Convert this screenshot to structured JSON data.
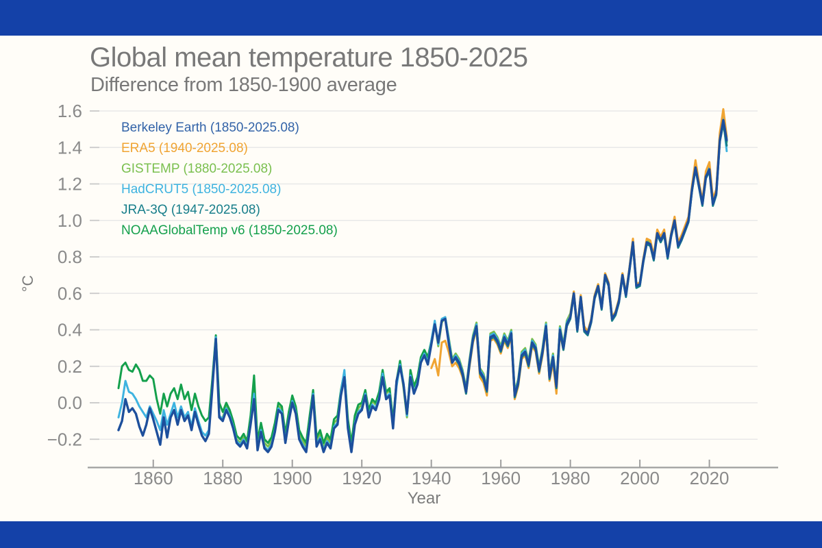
{
  "page": {
    "background": "#fffdf8",
    "banner_color": "#1441a8",
    "title_color": "#787878",
    "axis_text_color": "#8a8a8a",
    "gridline_color": "#e8e8e8",
    "axis_line_color": "#9e9e9e"
  },
  "chart_data": {
    "type": "line",
    "title": "Global mean temperature 1850-2025",
    "subtitle": "Difference from 1850-1900 average",
    "xlabel": "Year",
    "ylabel": "°C",
    "grid": true,
    "legend_position": "top-left",
    "x_range": [
      1850,
      2025.5
    ],
    "ylim": [
      -0.35,
      1.65
    ],
    "x_ticks": [
      1860,
      1880,
      1900,
      1920,
      1940,
      1960,
      1980,
      2000,
      2020
    ],
    "y_ticks": [
      1.6,
      1.4,
      1.2,
      1.0,
      0.8,
      0.6,
      0.4,
      0.2,
      0.0,
      -0.2
    ],
    "draw_order": [
      "gistemp",
      "noaa",
      "hadcrut5",
      "era5",
      "jra3q",
      "berkeley"
    ],
    "series": [
      {
        "id": "berkeley",
        "label": "Berkeley Earth (1850-2025.08)",
        "color": "#1d4f9c",
        "legend_color": "#3263a8",
        "line_width": 3.4,
        "start_year": 1850,
        "values": [
          -0.15,
          -0.1,
          0.02,
          -0.05,
          -0.03,
          -0.06,
          -0.13,
          -0.18,
          -0.12,
          -0.03,
          -0.09,
          -0.16,
          -0.23,
          -0.08,
          -0.19,
          -0.08,
          -0.04,
          -0.12,
          -0.04,
          -0.1,
          -0.07,
          -0.15,
          -0.05,
          -0.12,
          -0.18,
          -0.21,
          -0.17,
          0.08,
          0.35,
          -0.08,
          -0.1,
          -0.04,
          -0.08,
          -0.14,
          -0.22,
          -0.24,
          -0.21,
          -0.25,
          -0.12,
          0.02,
          -0.26,
          -0.16,
          -0.25,
          -0.27,
          -0.24,
          -0.16,
          -0.04,
          -0.06,
          -0.22,
          -0.1,
          0.0,
          -0.06,
          -0.2,
          -0.24,
          -0.27,
          -0.12,
          0.04,
          -0.24,
          -0.2,
          -0.27,
          -0.22,
          -0.25,
          -0.14,
          -0.12,
          0.04,
          0.14,
          -0.14,
          -0.27,
          -0.12,
          -0.06,
          -0.04,
          0.04,
          -0.08,
          -0.02,
          -0.04,
          0.02,
          0.14,
          0.02,
          0.04,
          -0.14,
          0.12,
          0.2,
          0.1,
          -0.06,
          0.14,
          0.05,
          0.1,
          0.22,
          0.26,
          0.21,
          0.32,
          0.43,
          0.33,
          0.45,
          0.46,
          0.33,
          0.22,
          0.25,
          0.22,
          0.16,
          0.06,
          0.22,
          0.35,
          0.42,
          0.17,
          0.14,
          0.07,
          0.36,
          0.37,
          0.34,
          0.29,
          0.36,
          0.32,
          0.38,
          0.04,
          0.11,
          0.26,
          0.28,
          0.21,
          0.33,
          0.3,
          0.18,
          0.28,
          0.42,
          0.14,
          0.25,
          0.09,
          0.4,
          0.3,
          0.43,
          0.47,
          0.6,
          0.4,
          0.58,
          0.4,
          0.38,
          0.45,
          0.58,
          0.64,
          0.52,
          0.7,
          0.65,
          0.46,
          0.49,
          0.56,
          0.7,
          0.59,
          0.73,
          0.88,
          0.64,
          0.65,
          0.78,
          0.88,
          0.87,
          0.79,
          0.93,
          0.89,
          0.93,
          0.8,
          0.92,
          1.0,
          0.86,
          0.9,
          0.95,
          1.0,
          1.17,
          1.29,
          1.19,
          1.09,
          1.24,
          1.28,
          1.09,
          1.15,
          1.44,
          1.55,
          1.44
        ]
      },
      {
        "id": "era5",
        "label": "ERA5 (1940-2025.08)",
        "color": "#f0a432",
        "legend_color": "#f0a432",
        "line_width": 3,
        "start_year": 1940,
        "values": [
          0.19,
          0.24,
          0.15,
          0.33,
          0.34,
          0.28,
          0.2,
          0.22,
          0.19,
          0.14,
          0.05,
          0.2,
          0.33,
          0.4,
          0.14,
          0.11,
          0.04,
          0.34,
          0.35,
          0.32,
          0.27,
          0.34,
          0.3,
          0.36,
          0.02,
          0.09,
          0.24,
          0.26,
          0.19,
          0.31,
          0.28,
          0.16,
          0.26,
          0.4,
          0.12,
          0.22,
          0.05,
          0.38,
          0.29,
          0.42,
          0.48,
          0.61,
          0.41,
          0.59,
          0.42,
          0.39,
          0.46,
          0.59,
          0.65,
          0.53,
          0.71,
          0.66,
          0.47,
          0.5,
          0.57,
          0.71,
          0.6,
          0.74,
          0.9,
          0.65,
          0.66,
          0.79,
          0.9,
          0.89,
          0.81,
          0.95,
          0.91,
          0.95,
          0.81,
          0.93,
          1.02,
          0.88,
          0.92,
          0.97,
          1.02,
          1.19,
          1.33,
          1.21,
          1.11,
          1.27,
          1.32,
          1.12,
          1.17,
          1.48,
          1.61,
          1.46
        ]
      },
      {
        "id": "gistemp",
        "label": "GISTEMP (1880-2025.08)",
        "color": "#7abf4e",
        "legend_color": "#7abf4e",
        "line_width": 3,
        "start_year": 1880,
        "values": [
          -0.08,
          -0.02,
          -0.06,
          -0.12,
          -0.2,
          -0.22,
          -0.19,
          -0.23,
          -0.09,
          0.12,
          -0.23,
          -0.13,
          -0.22,
          -0.24,
          -0.21,
          -0.13,
          -0.02,
          -0.03,
          -0.19,
          -0.07,
          0.03,
          -0.03,
          -0.17,
          -0.21,
          -0.24,
          -0.09,
          0.06,
          -0.21,
          -0.17,
          -0.24,
          -0.19,
          -0.22,
          -0.11,
          -0.09,
          0.06,
          0.16,
          -0.11,
          -0.24,
          -0.09,
          -0.03,
          -0.01,
          0.06,
          -0.05,
          0.01,
          -0.01,
          0.05,
          0.17,
          0.05,
          0.07,
          -0.11,
          0.11,
          0.22,
          0.08,
          -0.08,
          0.17,
          0.08,
          0.13,
          0.24,
          0.28,
          0.24,
          0.33,
          0.44,
          0.31,
          0.44,
          0.47,
          0.36,
          0.24,
          0.27,
          0.24,
          0.18,
          0.08,
          0.24,
          0.37,
          0.44,
          0.19,
          0.16,
          0.09,
          0.38,
          0.39,
          0.36,
          0.31,
          0.38,
          0.34,
          0.4,
          0.06,
          0.13,
          0.28,
          0.3,
          0.23,
          0.35,
          0.32,
          0.2,
          0.3,
          0.44,
          0.16,
          0.27,
          0.11,
          0.42,
          0.32,
          0.45,
          0.49,
          0.61,
          0.41,
          0.59,
          0.41,
          0.39,
          0.46,
          0.59,
          0.65,
          0.53,
          0.71,
          0.66,
          0.47,
          0.5,
          0.57,
          0.71,
          0.6,
          0.74,
          0.89,
          0.65,
          0.66,
          0.79,
          0.89,
          0.88,
          0.8,
          0.94,
          0.9,
          0.94,
          0.81,
          0.93,
          1.01,
          0.87,
          0.91,
          0.96,
          1.01,
          1.18,
          1.31,
          1.2,
          1.1,
          1.25,
          1.3,
          1.11,
          1.17,
          1.46,
          1.58,
          1.45
        ]
      },
      {
        "id": "hadcrut5",
        "label": "HadCRUT5 (1850-2025.08)",
        "color": "#3eb3e0",
        "legend_color": "#3eb3e0",
        "line_width": 3,
        "start_year": 1850,
        "values": [
          -0.08,
          0.0,
          0.12,
          0.06,
          0.05,
          0.02,
          -0.02,
          -0.05,
          -0.08,
          -0.02,
          -0.06,
          -0.1,
          -0.15,
          -0.04,
          -0.12,
          -0.06,
          0.0,
          -0.08,
          -0.02,
          -0.08,
          -0.05,
          -0.13,
          -0.03,
          -0.1,
          -0.16,
          -0.18,
          -0.15,
          0.09,
          0.36,
          -0.07,
          -0.09,
          -0.03,
          -0.07,
          -0.13,
          -0.21,
          -0.23,
          -0.2,
          -0.24,
          -0.11,
          0.05,
          -0.25,
          -0.15,
          -0.24,
          -0.26,
          -0.23,
          -0.15,
          -0.03,
          -0.05,
          -0.21,
          -0.09,
          0.01,
          -0.05,
          -0.19,
          -0.23,
          -0.26,
          -0.11,
          0.05,
          -0.23,
          -0.19,
          -0.26,
          -0.21,
          -0.24,
          -0.13,
          -0.11,
          0.06,
          0.18,
          -0.13,
          -0.26,
          -0.11,
          -0.05,
          -0.03,
          0.05,
          -0.07,
          -0.01,
          -0.03,
          0.03,
          0.16,
          0.03,
          0.05,
          -0.13,
          0.09,
          0.21,
          0.11,
          -0.07,
          0.15,
          0.06,
          0.11,
          0.23,
          0.27,
          0.22,
          0.34,
          0.45,
          0.32,
          0.46,
          0.47,
          0.35,
          0.23,
          0.26,
          0.23,
          0.17,
          0.07,
          0.23,
          0.36,
          0.43,
          0.18,
          0.15,
          0.08,
          0.37,
          0.38,
          0.35,
          0.3,
          0.37,
          0.33,
          0.39,
          0.05,
          0.12,
          0.27,
          0.29,
          0.22,
          0.34,
          0.31,
          0.19,
          0.29,
          0.43,
          0.15,
          0.26,
          0.1,
          0.41,
          0.31,
          0.44,
          0.48,
          0.6,
          0.4,
          0.58,
          0.41,
          0.38,
          0.45,
          0.58,
          0.64,
          0.52,
          0.7,
          0.65,
          0.46,
          0.49,
          0.56,
          0.7,
          0.59,
          0.73,
          0.89,
          0.64,
          0.65,
          0.78,
          0.88,
          0.87,
          0.79,
          0.93,
          0.89,
          0.93,
          0.8,
          0.92,
          1.0,
          0.86,
          0.9,
          0.95,
          1.0,
          1.16,
          1.3,
          1.19,
          1.09,
          1.24,
          1.29,
          1.1,
          1.16,
          1.45,
          1.56,
          1.38
        ]
      },
      {
        "id": "jra3q",
        "label": "JRA-3Q (1947-2025.08)",
        "color": "#177e8a",
        "legend_color": "#177e8a",
        "line_width": 3,
        "start_year": 1947,
        "values": [
          0.24,
          0.21,
          0.15,
          0.05,
          0.21,
          0.34,
          0.41,
          0.16,
          0.13,
          0.06,
          0.35,
          0.36,
          0.33,
          0.28,
          0.35,
          0.31,
          0.37,
          0.03,
          0.1,
          0.25,
          0.27,
          0.2,
          0.32,
          0.29,
          0.17,
          0.27,
          0.41,
          0.13,
          0.24,
          0.08,
          0.39,
          0.29,
          0.42,
          0.46,
          0.59,
          0.39,
          0.57,
          0.39,
          0.37,
          0.44,
          0.57,
          0.63,
          0.51,
          0.69,
          0.64,
          0.45,
          0.48,
          0.55,
          0.69,
          0.58,
          0.72,
          0.87,
          0.63,
          0.64,
          0.77,
          0.87,
          0.86,
          0.78,
          0.92,
          0.88,
          0.92,
          0.79,
          0.91,
          0.99,
          0.85,
          0.89,
          0.94,
          0.99,
          1.16,
          1.28,
          1.18,
          1.08,
          1.23,
          1.27,
          1.08,
          1.14,
          1.43,
          1.53,
          1.41
        ]
      },
      {
        "id": "noaa",
        "label": "NOAAGlobalTemp v6 (1850-2025.08)",
        "color": "#14a04c",
        "legend_color": "#14a04c",
        "line_width": 3,
        "start_year": 1850,
        "values": [
          0.08,
          0.2,
          0.22,
          0.18,
          0.17,
          0.21,
          0.18,
          0.12,
          0.12,
          0.15,
          0.13,
          0.02,
          -0.06,
          0.05,
          -0.02,
          0.05,
          0.08,
          0.02,
          0.1,
          0.02,
          0.06,
          -0.04,
          0.05,
          -0.02,
          -0.07,
          -0.1,
          -0.08,
          0.13,
          0.37,
          0.0,
          -0.05,
          0.0,
          -0.04,
          -0.1,
          -0.18,
          -0.2,
          -0.17,
          -0.21,
          -0.07,
          0.15,
          -0.21,
          -0.11,
          -0.2,
          -0.22,
          -0.19,
          -0.11,
          0.0,
          -0.02,
          -0.17,
          -0.05,
          0.04,
          -0.02,
          -0.15,
          -0.19,
          -0.22,
          -0.07,
          0.07,
          -0.19,
          -0.15,
          -0.22,
          -0.17,
          -0.2,
          -0.09,
          -0.07,
          0.07,
          0.17,
          -0.09,
          -0.22,
          -0.07,
          -0.01,
          0.0,
          0.07,
          -0.04,
          0.02,
          0.0,
          0.06,
          0.18,
          0.06,
          0.08,
          -0.1,
          0.12,
          0.23,
          0.1,
          -0.07,
          0.18,
          0.09,
          0.14,
          0.25,
          0.29,
          0.25,
          0.34,
          0.44,
          0.33,
          0.45,
          0.46,
          0.35,
          0.23,
          0.26,
          0.23,
          0.17,
          0.07,
          0.23,
          0.36,
          0.43,
          0.18,
          0.15,
          0.08,
          0.37,
          0.38,
          0.35,
          0.3,
          0.37,
          0.33,
          0.39,
          0.05,
          0.12,
          0.27,
          0.29,
          0.22,
          0.34,
          0.31,
          0.19,
          0.29,
          0.43,
          0.15,
          0.26,
          0.1,
          0.41,
          0.31,
          0.44,
          0.48,
          0.6,
          0.4,
          0.58,
          0.41,
          0.38,
          0.45,
          0.58,
          0.64,
          0.52,
          0.7,
          0.65,
          0.46,
          0.49,
          0.56,
          0.7,
          0.59,
          0.73,
          0.89,
          0.64,
          0.65,
          0.78,
          0.88,
          0.87,
          0.79,
          0.93,
          0.89,
          0.93,
          0.8,
          0.92,
          1.01,
          0.87,
          0.91,
          0.96,
          1.01,
          1.17,
          1.3,
          1.2,
          1.1,
          1.25,
          1.29,
          1.1,
          1.16,
          1.45,
          1.57,
          1.43
        ]
      }
    ]
  }
}
